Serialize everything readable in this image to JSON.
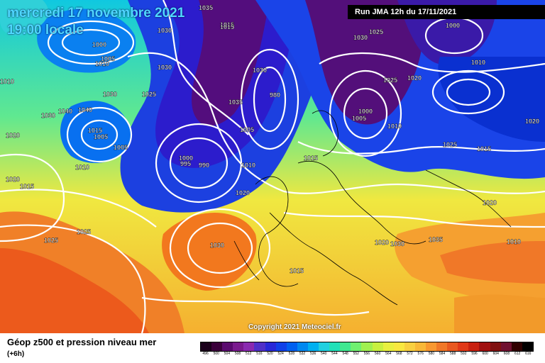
{
  "header": {
    "date": "mercredi 17 novembre 2021",
    "time": "19:00 locale",
    "run": "Run JMA 12h du 17/11/2021"
  },
  "footer": {
    "title": "Géop z500 et pression niveau mer",
    "subtitle": "(+6h)",
    "copyright": "Copyright 2021 Meteociel.fr"
  },
  "colors": {
    "deep_low": "#5a0a6e",
    "low": "#1530c8",
    "mid": "#20d8b0",
    "high": "#f0e840",
    "very_high": "#f26a1e"
  },
  "scale": {
    "labels": [
      "496",
      "500",
      "504",
      "508",
      "512",
      "516",
      "520",
      "524",
      "528",
      "532",
      "536",
      "540",
      "544",
      "548",
      "552",
      "556",
      "560",
      "564",
      "568",
      "572",
      "576",
      "580",
      "584",
      "588",
      "592",
      "596",
      "600",
      "604",
      "608",
      "612",
      "616"
    ],
    "colors": [
      "#1a001a",
      "#3a003a",
      "#5a0a6e",
      "#7a1a8e",
      "#8a2ab0",
      "#5030c8",
      "#2828d8",
      "#1040e8",
      "#0060f0",
      "#0088f0",
      "#00b0f0",
      "#20d0e0",
      "#20e0b8",
      "#40e890",
      "#70f070",
      "#a0f050",
      "#c8f040",
      "#e8f040",
      "#f8e840",
      "#f8d040",
      "#f8b838",
      "#f89830",
      "#f07828",
      "#e85820",
      "#e03818",
      "#c82010",
      "#a01010",
      "#801010",
      "#701030",
      "#300000",
      "#000000"
    ]
  },
  "pressure_labels": [
    "1035",
    "1030",
    "1015",
    "1000",
    "1005",
    "1010",
    "1030",
    "1025",
    "1030",
    "1040",
    "1030",
    "1015",
    "1005",
    "1005",
    "1010",
    "1020",
    "1015",
    "1010",
    "1025",
    "1020",
    "1015",
    "1000",
    "995",
    "990",
    "1005",
    "1010",
    "1020",
    "1030",
    "1025",
    "1015",
    "1020",
    "1025",
    "1030",
    "1035",
    "1000",
    "1005",
    "1010",
    "1025",
    "1030",
    "1020",
    "1015",
    "1010",
    "1020",
    "1000",
    "1015",
    "1025",
    "1010",
    "1020",
    "1035",
    "980",
    "1030",
    "1040"
  ]
}
